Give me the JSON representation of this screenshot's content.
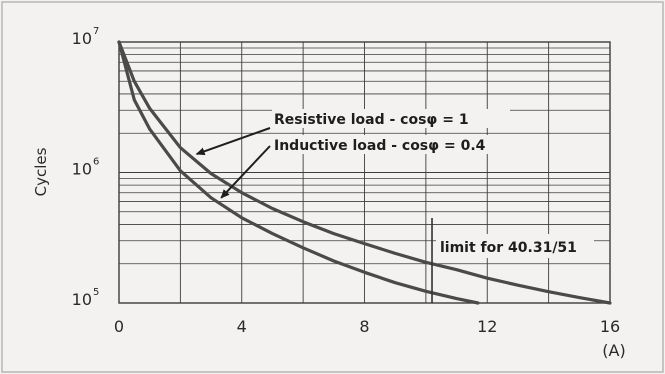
{
  "chart_data": {
    "type": "line",
    "xlabel": "",
    "x_unit_label": "(A)",
    "ylabel": "Cycles",
    "x_ticks": [
      0,
      4,
      8,
      12,
      16
    ],
    "x_tick_labels": [
      "0",
      "4",
      "8",
      "12",
      "16"
    ],
    "y_scale": "log",
    "y_ticks": [
      100000,
      1000000,
      10000000
    ],
    "y_tick_labels": [
      {
        "base": "10",
        "exp": "5"
      },
      {
        "base": "10",
        "exp": "6"
      },
      {
        "base": "10",
        "exp": "7"
      }
    ],
    "xlim": [
      0,
      16
    ],
    "ylim": [
      100000,
      10000000
    ],
    "grid": true,
    "series": [
      {
        "name": "Resistive load - cosφ = 1",
        "x": [
          0,
          0.5,
          1,
          2,
          3,
          4,
          5,
          6,
          7,
          8,
          9,
          10,
          11,
          12,
          13,
          14,
          15,
          16
        ],
        "y": [
          10000000,
          5000000,
          3100000,
          1550000,
          980000,
          700000,
          530000,
          420000,
          340000,
          285000,
          240000,
          205000,
          180000,
          155000,
          137000,
          122000,
          110000,
          100000
        ]
      },
      {
        "name": "Inductive load - cosφ = 0.4",
        "x": [
          0,
          0.5,
          1,
          2,
          3,
          4,
          5,
          6,
          7,
          8,
          9,
          10,
          11,
          11.7
        ],
        "y": [
          10000000,
          3600000,
          2150000,
          1030000,
          640000,
          450000,
          340000,
          265000,
          210000,
          172000,
          143000,
          123000,
          108000,
          100000
        ]
      }
    ],
    "annotations": [
      {
        "text": "Resistive load - cosφ = 1",
        "target_series": 0,
        "arrow_at_x": 2.4
      },
      {
        "text": "Inductive load - cosφ = 0.4",
        "target_series": 1,
        "arrow_at_x": 3.2
      }
    ],
    "limit_marker": {
      "x": 10.2,
      "label": "limit for 40.31/51"
    }
  }
}
